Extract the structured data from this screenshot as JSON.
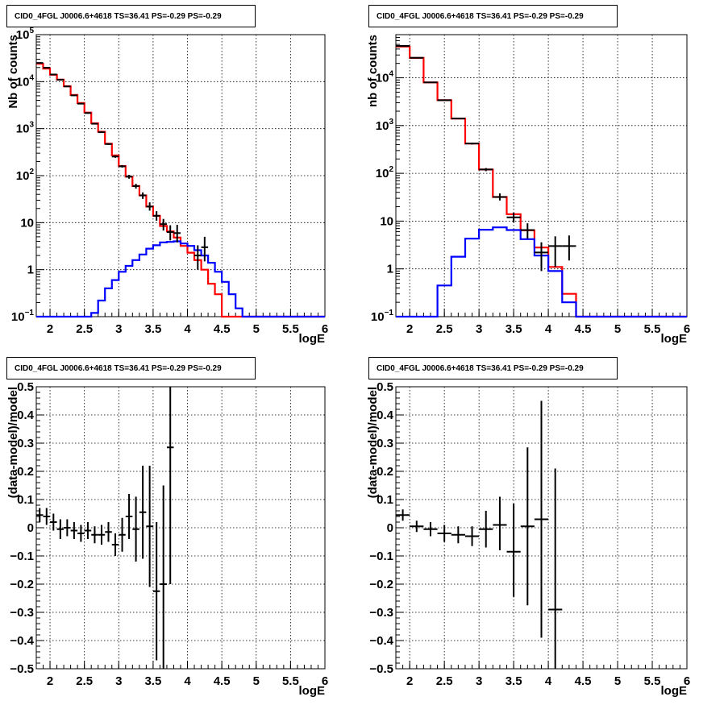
{
  "panels": [
    {
      "title": "CID0_4FGL J0006.6+4618 TS=36.41 PS=-0.29 PS=-0.29",
      "type": "counts",
      "xlabel": "logE",
      "ylabel": "Nb of counts",
      "xlim": [
        1.8,
        6.0
      ],
      "ylim": [
        0.1,
        100000
      ],
      "yscale": "log",
      "grid": true,
      "xticks": [
        "2",
        "2.5",
        "3",
        "3.5",
        "4",
        "4.5",
        "5",
        "5.5",
        "6"
      ],
      "yticks": [
        "10^-1",
        "1",
        "10",
        "10^2",
        "10^3",
        "10^4",
        "10^5"
      ],
      "bin_edges": [
        1.8,
        1.9,
        2.0,
        2.1,
        2.2,
        2.3,
        2.4,
        2.5,
        2.6,
        2.7,
        2.8,
        2.9,
        3.0,
        3.1,
        3.2,
        3.3,
        3.4,
        3.5,
        3.6,
        3.7,
        3.8,
        3.9,
        4.0,
        4.1,
        4.2,
        4.3,
        4.4,
        4.5,
        4.6,
        4.7,
        4.8,
        4.9,
        5.0,
        5.1,
        5.2,
        5.3,
        5.4,
        5.5,
        5.6,
        5.7,
        5.8,
        5.9,
        6.0
      ],
      "series": [
        {
          "color": "#ff0000",
          "values": [
            24000,
            19000,
            14000,
            11000,
            8000,
            5200,
            3500,
            2200,
            1300,
            860,
            480,
            270,
            160,
            95,
            60,
            38,
            22,
            14,
            8.5,
            6.5,
            4.8,
            3.2,
            2.3,
            1.6,
            1.0,
            0.5,
            0.3,
            0.1,
            0.1,
            0.1,
            0.1,
            0.1,
            0.1,
            0.1,
            0.1,
            0.1,
            0.1,
            0.1,
            0.1,
            0.1,
            0.1,
            0.1
          ]
        },
        {
          "color": "#0000ff",
          "values": [
            0.1,
            0.1,
            0.1,
            0.1,
            0.1,
            0.1,
            0.1,
            0.1,
            0.12,
            0.22,
            0.4,
            0.6,
            0.9,
            1.2,
            1.6,
            2.1,
            2.8,
            3.3,
            3.8,
            3.9,
            4.0,
            3.6,
            3.2,
            2.6,
            2.0,
            1.4,
            0.9,
            0.55,
            0.3,
            0.15,
            0.1,
            0.1,
            0.1,
            0.1,
            0.1,
            0.1,
            0.1,
            0.1,
            0.1,
            0.1,
            0.1,
            0.1
          ]
        }
      ],
      "points": [
        {
          "x": 1.85,
          "y": 25000,
          "lo": 24500,
          "hi": 25500
        },
        {
          "x": 1.95,
          "y": 19800,
          "lo": 19400,
          "hi": 20200
        },
        {
          "x": 2.05,
          "y": 14200,
          "lo": 13900,
          "hi": 14500
        },
        {
          "x": 2.15,
          "y": 11000,
          "lo": 10700,
          "hi": 11300
        },
        {
          "x": 2.25,
          "y": 7900,
          "lo": 7700,
          "hi": 8100
        },
        {
          "x": 2.35,
          "y": 5100,
          "lo": 4950,
          "hi": 5250
        },
        {
          "x": 2.45,
          "y": 3400,
          "lo": 3300,
          "hi": 3500
        },
        {
          "x": 2.55,
          "y": 2150,
          "lo": 2080,
          "hi": 2220
        },
        {
          "x": 2.65,
          "y": 1270,
          "lo": 1230,
          "hi": 1310
        },
        {
          "x": 2.75,
          "y": 840,
          "lo": 810,
          "hi": 870
        },
        {
          "x": 2.85,
          "y": 470,
          "lo": 450,
          "hi": 490
        },
        {
          "x": 2.95,
          "y": 255,
          "lo": 240,
          "hi": 270
        },
        {
          "x": 3.05,
          "y": 158,
          "lo": 148,
          "hi": 168
        },
        {
          "x": 3.15,
          "y": 95,
          "lo": 86,
          "hi": 104
        },
        {
          "x": 3.25,
          "y": 60,
          "lo": 53,
          "hi": 67
        },
        {
          "x": 3.35,
          "y": 38,
          "lo": 32,
          "hi": 44
        },
        {
          "x": 3.45,
          "y": 22,
          "lo": 18,
          "hi": 27
        },
        {
          "x": 3.55,
          "y": 14,
          "lo": 11,
          "hi": 17.5
        },
        {
          "x": 3.65,
          "y": 9.3,
          "lo": 6.8,
          "hi": 12
        },
        {
          "x": 3.75,
          "y": 6.3,
          "lo": 4.2,
          "hi": 8.8
        },
        {
          "x": 3.85,
          "y": 6.0,
          "lo": 3.8,
          "hi": 9.0
        },
        {
          "x": 4.15,
          "y": 2.0,
          "lo": 1.0,
          "hi": 3.3
        },
        {
          "x": 4.25,
          "y": 3.0,
          "lo": 1.5,
          "hi": 5.0
        }
      ]
    },
    {
      "title": "CID0_4FGL J0006.6+4618 TS=36.41 PS=-0.29 PS=-0.29",
      "type": "counts",
      "xlabel": "logE",
      "ylabel": "nb of counts",
      "xlim": [
        1.8,
        6.0
      ],
      "ylim": [
        0.1,
        80000
      ],
      "yscale": "log",
      "grid": true,
      "xticks": [
        "2",
        "2.5",
        "3",
        "3.5",
        "4",
        "4.5",
        "5",
        "5.5",
        "6"
      ],
      "yticks": [
        "10^-1",
        "1",
        "10",
        "10^2",
        "10^3",
        "10^4"
      ],
      "bin_edges": [
        1.8,
        2.0,
        2.2,
        2.4,
        2.6,
        2.8,
        3.0,
        3.2,
        3.4,
        3.6,
        3.8,
        4.0,
        4.2,
        4.4,
        4.6,
        4.8,
        5.0,
        5.2,
        5.4,
        5.6,
        5.8,
        6.0
      ],
      "series": [
        {
          "color": "#ff0000",
          "values": [
            45000,
            26000,
            8000,
            3400,
            1400,
            420,
            120,
            32,
            14,
            6.4,
            2.8,
            1.1,
            0.3,
            0.1,
            0.1,
            0.1,
            0.1,
            0.1,
            0.1,
            0.1,
            0.1
          ]
        },
        {
          "color": "#0000ff",
          "values": [
            0.1,
            0.1,
            0.1,
            0.45,
            1.8,
            4.3,
            6.6,
            7.4,
            6.5,
            4.2,
            1.9,
            0.9,
            0.2,
            0.1,
            0.1,
            0.1,
            0.1,
            0.1,
            0.1,
            0.1,
            0.1
          ]
        }
      ],
      "points": [
        {
          "x": 1.9,
          "y": 46500,
          "lo": 46000,
          "hi": 47000
        },
        {
          "x": 2.1,
          "y": 26200,
          "lo": 25900,
          "hi": 26500
        },
        {
          "x": 2.3,
          "y": 8000,
          "lo": 7850,
          "hi": 8150
        },
        {
          "x": 2.5,
          "y": 3400,
          "lo": 3330,
          "hi": 3470
        },
        {
          "x": 2.7,
          "y": 1400,
          "lo": 1360,
          "hi": 1440
        },
        {
          "x": 2.9,
          "y": 420,
          "lo": 400,
          "hi": 440
        },
        {
          "x": 3.1,
          "y": 120,
          "lo": 111,
          "hi": 129
        },
        {
          "x": 3.3,
          "y": 32,
          "lo": 27,
          "hi": 38
        },
        {
          "x": 3.5,
          "y": 12,
          "lo": 9.3,
          "hi": 15
        },
        {
          "x": 3.7,
          "y": 6.5,
          "lo": 4.3,
          "hi": 9.0
        },
        {
          "x": 3.9,
          "y": 2.2,
          "lo": 0.9,
          "hi": 3.6
        },
        {
          "x": 4.1,
          "y": 3.0,
          "lo": 1.1,
          "hi": 4.8
        },
        {
          "x": 4.3,
          "y": 3.0,
          "lo": 1.5,
          "hi": 5.0
        }
      ]
    },
    {
      "title": "CID0_4FGL J0006.6+4618 TS=36.41 PS=-0.29 PS=-0.29",
      "type": "residual",
      "xlabel": "logE",
      "ylabel": "(data-model)/model",
      "xlim": [
        1.8,
        6.0
      ],
      "ylim": [
        -0.5,
        0.5
      ],
      "yscale": "linear",
      "grid": true,
      "xticks": [
        "2",
        "2.5",
        "3",
        "3.5",
        "4",
        "4.5",
        "5",
        "5.5",
        "6"
      ],
      "yticks": [
        "−0.5",
        "−0.4",
        "−0.3",
        "−0.2",
        "−0.1",
        "0",
        "0.1",
        "0.2",
        "0.3",
        "0.4",
        "0.5"
      ],
      "xhalf": 0.05,
      "points": [
        {
          "x": 1.85,
          "y": 0.045,
          "lo": 0.02,
          "hi": 0.07
        },
        {
          "x": 1.95,
          "y": 0.04,
          "lo": 0.01,
          "hi": 0.07
        },
        {
          "x": 2.05,
          "y": 0.02,
          "lo": -0.01,
          "hi": 0.05
        },
        {
          "x": 2.15,
          "y": -0.005,
          "lo": -0.04,
          "hi": 0.03
        },
        {
          "x": 2.25,
          "y": 0.0,
          "lo": -0.03,
          "hi": 0.03
        },
        {
          "x": 2.35,
          "y": -0.01,
          "lo": -0.04,
          "hi": 0.02
        },
        {
          "x": 2.45,
          "y": -0.02,
          "lo": -0.05,
          "hi": 0.01
        },
        {
          "x": 2.55,
          "y": -0.01,
          "lo": -0.04,
          "hi": 0.02
        },
        {
          "x": 2.65,
          "y": -0.025,
          "lo": -0.055,
          "hi": 0.005
        },
        {
          "x": 2.75,
          "y": -0.025,
          "lo": -0.06,
          "hi": 0.01
        },
        {
          "x": 2.85,
          "y": -0.015,
          "lo": -0.05,
          "hi": 0.02
        },
        {
          "x": 2.95,
          "y": -0.06,
          "lo": -0.1,
          "hi": -0.02
        },
        {
          "x": 3.05,
          "y": -0.025,
          "lo": -0.085,
          "hi": 0.035
        },
        {
          "x": 3.15,
          "y": 0.04,
          "lo": -0.04,
          "hi": 0.12
        },
        {
          "x": 3.25,
          "y": -0.005,
          "lo": -0.12,
          "hi": 0.11
        },
        {
          "x": 3.35,
          "y": 0.055,
          "lo": -0.11,
          "hi": 0.22
        },
        {
          "x": 3.45,
          "y": 0.005,
          "lo": -0.21,
          "hi": 0.22
        },
        {
          "x": 3.55,
          "y": -0.225,
          "lo": -0.47,
          "hi": 0.02
        },
        {
          "x": 3.65,
          "y": -0.2,
          "lo": -0.55,
          "hi": 0.15
        },
        {
          "x": 3.75,
          "y": 0.285,
          "lo": -0.2,
          "hi": 0.6
        }
      ]
    },
    {
      "title": "CID0_4FGL J0006.6+4618 TS=36.41 PS=-0.29 PS=-0.29",
      "type": "residual",
      "xlabel": "logE",
      "ylabel": "(data-model)/model",
      "xlim": [
        1.8,
        6.0
      ],
      "ylim": [
        -0.5,
        0.5
      ],
      "yscale": "linear",
      "grid": true,
      "xticks": [
        "2",
        "2.5",
        "3",
        "3.5",
        "4",
        "4.5",
        "5",
        "5.5",
        "6"
      ],
      "yticks": [
        "−0.5",
        "−0.4",
        "−0.3",
        "−0.2",
        "−0.1",
        "0",
        "0.1",
        "0.2",
        "0.3",
        "0.4",
        "0.5"
      ],
      "xhalf": 0.1,
      "points": [
        {
          "x": 1.9,
          "y": 0.045,
          "lo": 0.025,
          "hi": 0.065
        },
        {
          "x": 2.1,
          "y": 0.005,
          "lo": -0.015,
          "hi": 0.025
        },
        {
          "x": 2.3,
          "y": -0.005,
          "lo": -0.03,
          "hi": 0.02
        },
        {
          "x": 2.5,
          "y": -0.02,
          "lo": -0.05,
          "hi": 0.01
        },
        {
          "x": 2.7,
          "y": -0.025,
          "lo": -0.055,
          "hi": 0.005
        },
        {
          "x": 2.9,
          "y": -0.03,
          "lo": -0.065,
          "hi": 0.005
        },
        {
          "x": 3.1,
          "y": -0.005,
          "lo": -0.07,
          "hi": 0.06
        },
        {
          "x": 3.3,
          "y": 0.01,
          "lo": -0.08,
          "hi": 0.11
        },
        {
          "x": 3.5,
          "y": -0.085,
          "lo": -0.245,
          "hi": 0.085
        },
        {
          "x": 3.7,
          "y": 0.005,
          "lo": -0.275,
          "hi": 0.285
        },
        {
          "x": 3.9,
          "y": 0.03,
          "lo": -0.39,
          "hi": 0.45
        },
        {
          "x": 4.1,
          "y": -0.29,
          "lo": -0.55,
          "hi": 0.21
        }
      ]
    }
  ]
}
